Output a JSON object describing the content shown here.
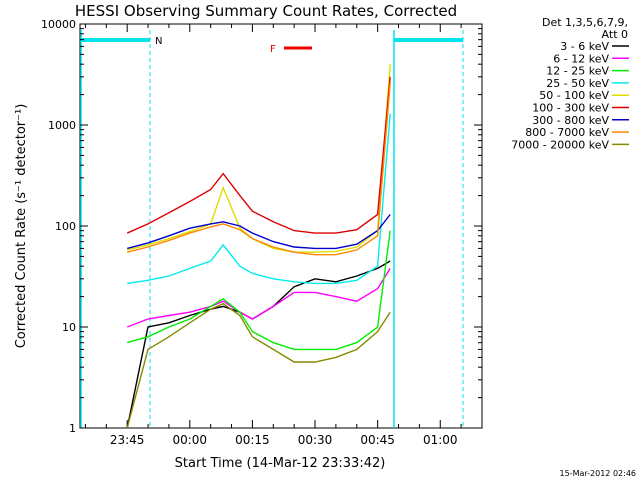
{
  "chart_data": {
    "type": "line",
    "title": "HESSI Observing Summary Count Rates, Corrected",
    "xlabel": "Start Time (14-Mar-12 23:33:42)",
    "ylabel": "Corrected Count Rate (s⁻¹ detector⁻¹)",
    "x_scale": "time",
    "y_scale": "log",
    "xlim": [
      "23:33:42",
      "01:10:00"
    ],
    "ylim": [
      1,
      10000
    ],
    "x_tick_labels": [
      "23:45",
      "00:00",
      "00:15",
      "00:30",
      "00:45",
      "01:00"
    ],
    "y_tick_labels": [
      "1",
      "10",
      "100",
      "1000",
      "10000"
    ],
    "legend": {
      "position": "top-right",
      "header_line1": "Det 1,3,5,6,7,9,",
      "header_line2": "Att 0"
    },
    "series": [
      {
        "name": "3 - 6 keV",
        "color": "#000000",
        "x": [
          "23:45",
          "23:50",
          "23:55",
          "00:00",
          "00:05",
          "00:08",
          "00:12",
          "00:15",
          "00:20",
          "00:25",
          "00:30",
          "00:35",
          "00:40",
          "00:45",
          "00:48"
        ],
        "values": [
          1,
          10,
          11,
          13,
          15,
          16,
          14,
          12,
          16,
          25,
          30,
          28,
          32,
          38,
          45
        ]
      },
      {
        "name": "6 - 12 keV",
        "color": "#ff00ff",
        "x": [
          "23:45",
          "23:50",
          "23:55",
          "00:00",
          "00:05",
          "00:08",
          "00:12",
          "00:15",
          "00:20",
          "00:25",
          "00:30",
          "00:35",
          "00:40",
          "00:45",
          "00:48"
        ],
        "values": [
          10,
          12,
          13,
          14,
          16,
          18,
          14,
          12,
          16,
          22,
          22,
          20,
          18,
          24,
          38
        ]
      },
      {
        "name": "12 - 25 keV",
        "color": "#00ee00",
        "x": [
          "23:45",
          "23:50",
          "23:55",
          "00:00",
          "00:05",
          "00:08",
          "00:12",
          "00:15",
          "00:20",
          "00:25",
          "00:30",
          "00:35",
          "00:40",
          "00:45",
          "00:48"
        ],
        "values": [
          7,
          8,
          10,
          12,
          16,
          19,
          14,
          9,
          7,
          6,
          6,
          6,
          7,
          10,
          90
        ]
      },
      {
        "name": "25 - 50 keV",
        "color": "#00eeee",
        "x": [
          "23:45",
          "23:50",
          "23:55",
          "00:00",
          "00:05",
          "00:08",
          "00:12",
          "00:15",
          "00:20",
          "00:25",
          "00:30",
          "00:35",
          "00:40",
          "00:45",
          "00:48"
        ],
        "values": [
          27,
          29,
          32,
          38,
          45,
          65,
          40,
          34,
          30,
          28,
          27,
          27,
          29,
          40,
          1300
        ]
      },
      {
        "name": "50 - 100 keV",
        "color": "#dddd00",
        "x": [
          "23:45",
          "23:50",
          "23:55",
          "00:00",
          "00:05",
          "00:08",
          "00:12",
          "00:15",
          "00:20",
          "00:25",
          "00:30",
          "00:35",
          "00:40",
          "00:45",
          "00:48"
        ],
        "values": [
          58,
          65,
          75,
          88,
          105,
          240,
          95,
          75,
          60,
          55,
          55,
          56,
          62,
          90,
          4000
        ]
      },
      {
        "name": "100 - 300 keV",
        "color": "#dd0000",
        "x": [
          "23:45",
          "23:50",
          "23:55",
          "00:00",
          "00:05",
          "00:08",
          "00:12",
          "00:15",
          "00:20",
          "00:25",
          "00:30",
          "00:35",
          "00:40",
          "00:45",
          "00:48"
        ],
        "values": [
          85,
          105,
          135,
          175,
          230,
          330,
          200,
          140,
          110,
          90,
          85,
          85,
          92,
          130,
          3000
        ]
      },
      {
        "name": "300 - 800 keV",
        "color": "#0000cc",
        "x": [
          "23:45",
          "23:50",
          "23:55",
          "00:00",
          "00:05",
          "00:08",
          "00:12",
          "00:15",
          "00:20",
          "00:25",
          "00:30",
          "00:35",
          "00:40",
          "00:45",
          "00:48"
        ],
        "values": [
          60,
          68,
          80,
          95,
          105,
          110,
          100,
          85,
          70,
          62,
          60,
          60,
          66,
          90,
          130
        ]
      },
      {
        "name": "800 - 7000 keV",
        "color": "#ff8800",
        "x": [
          "23:45",
          "23:50",
          "23:55",
          "00:00",
          "00:05",
          "00:08",
          "00:12",
          "00:15",
          "00:20",
          "00:25",
          "00:30",
          "00:35",
          "00:40",
          "00:45",
          "00:48"
        ],
        "values": [
          55,
          62,
          72,
          85,
          98,
          105,
          92,
          75,
          62,
          55,
          52,
          52,
          58,
          80,
          2600
        ]
      },
      {
        "name": "7000 - 20000 keV",
        "color": "#888800",
        "x": [
          "23:45",
          "23:50",
          "23:55",
          "00:00",
          "00:05",
          "00:08",
          "00:12",
          "00:15",
          "00:20",
          "00:25",
          "00:30",
          "00:35",
          "00:40",
          "00:45",
          "00:48"
        ],
        "values": [
          1,
          6,
          8,
          11,
          15,
          17,
          13,
          8,
          6,
          4.5,
          4.5,
          5,
          6,
          9,
          14
        ]
      }
    ],
    "annotations": {
      "night_label": "N",
      "flare_label": "F",
      "timestamp": "15-Mar-2012 02:46"
    }
  },
  "colors": {
    "night_bar": "#00e5ee",
    "flare_bar": "#ee0000"
  }
}
